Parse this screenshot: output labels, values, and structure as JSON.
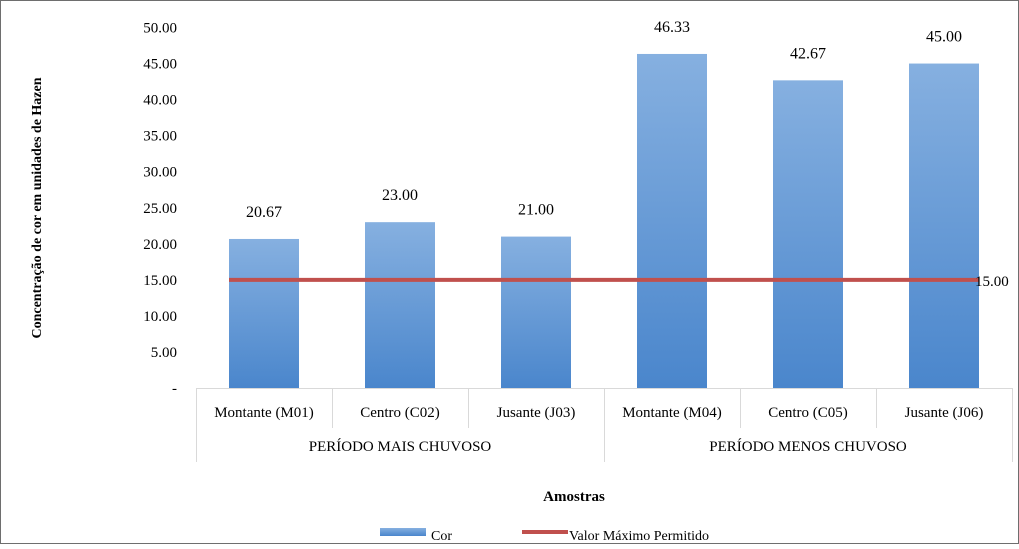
{
  "chart_data": {
    "type": "bar",
    "categories": [
      "Montante (M01)",
      "Centro (C02)",
      "Jusante (J03)",
      "Montante (M04)",
      "Centro (C05)",
      "Jusante (J06)"
    ],
    "groups": [
      {
        "label": "PERÍODO MAIS CHUVOSO",
        "categories": 3
      },
      {
        "label": "PERÍODO MENOS CHUVOSO",
        "categories": 3
      }
    ],
    "series": [
      {
        "name": "Cor",
        "type": "bar",
        "values": [
          20.67,
          23.0,
          21.0,
          46.33,
          42.67,
          45.0
        ],
        "color": "#5b9bd5"
      },
      {
        "name": "Valor Máximo Permitido",
        "type": "line",
        "values": [
          15,
          15,
          15,
          15,
          15,
          15
        ],
        "color": "#c0504d",
        "end_label": "15.00"
      }
    ],
    "data_labels": [
      "20.67",
      "23.00",
      "21.00",
      "46.33",
      "42.67",
      "45.00"
    ],
    "yticks": [
      0,
      5,
      10,
      15,
      20,
      25,
      30,
      35,
      40,
      45,
      50
    ],
    "ytick_labels": [
      "-",
      "5.00",
      "10.00",
      "15.00",
      "20.00",
      "25.00",
      "30.00",
      "35.00",
      "40.00",
      "45.00",
      "50.00"
    ],
    "ylim": [
      0,
      50
    ],
    "ylabel": "Concentração de cor em unidades de Hazen",
    "xlabel": "Amostras",
    "legend": {
      "placement": "bottom",
      "items": [
        "Cor",
        "Valor Máximo Permitido"
      ]
    },
    "grid": false
  }
}
